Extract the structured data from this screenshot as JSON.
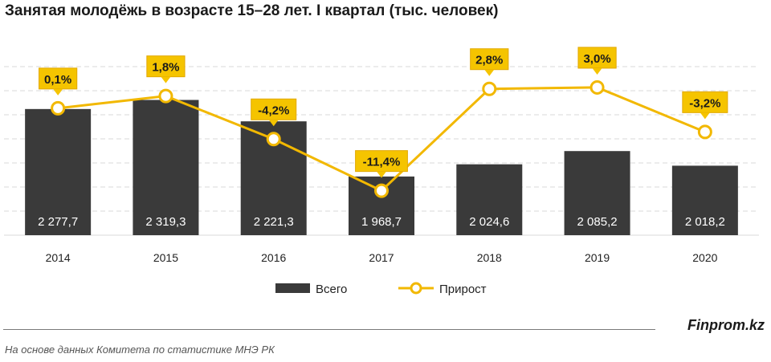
{
  "title": "Занятая молодёжь в возрасте 15–28  лет. I квартал (тыс. человек)",
  "brand": "Finprom.kz",
  "source": "На основе данных  Комитета по статистике МНЭ РК",
  "colors": {
    "bar": "#3a3a3a",
    "line": "#f2b800",
    "label_box": "#f5c400",
    "grid": "#d9d9d9"
  },
  "chart_data": {
    "type": "bar",
    "categories": [
      "2014",
      "2015",
      "2016",
      "2017",
      "2018",
      "2019",
      "2020"
    ],
    "series": [
      {
        "name": "Всего",
        "type": "bar",
        "values": [
          2277.7,
          2319.3,
          2221.3,
          1968.7,
          2024.6,
          2085.2,
          2018.2
        ],
        "labels": [
          "2 277,7",
          "2 319,3",
          "2 221,3",
          "1 968,7",
          "2 024,6",
          "2 085,2",
          "2 018,2"
        ]
      },
      {
        "name": "Прирост",
        "type": "line",
        "values": [
          0.1,
          1.8,
          -4.2,
          -11.4,
          2.8,
          3.0,
          -3.2
        ],
        "labels": [
          "0,1%",
          "1,8%",
          "-4,2%",
          "-11,4%",
          "2,8%",
          "3,0%",
          "-3,2%"
        ]
      }
    ],
    "grid": true,
    "legend": "bottom"
  }
}
